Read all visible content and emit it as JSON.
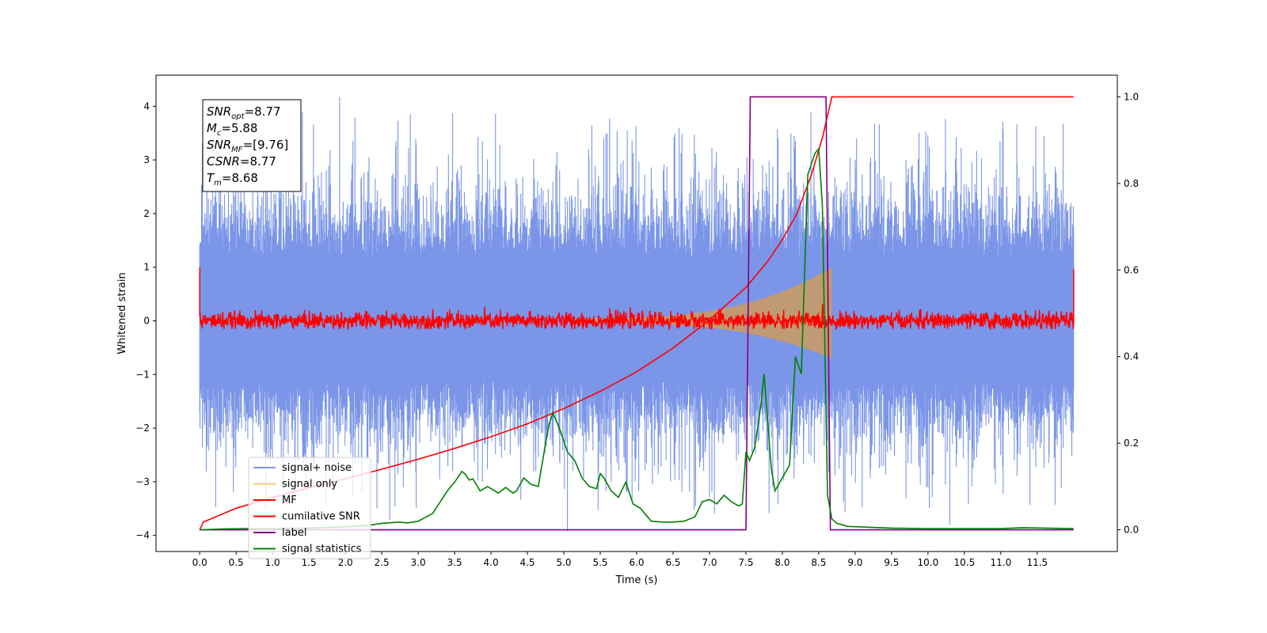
{
  "chart_data": {
    "type": "line",
    "xlabel": "Time (s)",
    "ylabel": "Whitened strain",
    "xlim": [
      -0.6,
      12.6
    ],
    "ylim": [
      -4.3,
      4.58
    ],
    "y2lim": [
      -0.05,
      1.05
    ],
    "xticks": [
      "0.0",
      "0.5",
      "1.0",
      "1.5",
      "2.0",
      "2.5",
      "3.0",
      "3.5",
      "4.0",
      "4.5",
      "5.0",
      "5.5",
      "6.0",
      "6.5",
      "7.0",
      "7.5",
      "8.0",
      "8.5",
      "9.0",
      "9.5",
      "10.0",
      "10.5",
      "11.0",
      "11.5"
    ],
    "yticks": [
      "−4",
      "−3",
      "−2",
      "−1",
      "0",
      "1",
      "2",
      "3",
      "4"
    ],
    "y2ticks": [
      "0.0",
      "0.2",
      "0.4",
      "0.6",
      "0.8",
      "1.0"
    ],
    "grid": false,
    "legend_position": "lower-left",
    "annotation": {
      "lines": [
        {
          "sym": "SNR",
          "sub": "opt",
          "value": "=8.77"
        },
        {
          "sym": "M",
          "sub": "c",
          "value": "=5.88"
        },
        {
          "sym": "SNR",
          "sub": "MF",
          "value": "=[9.76]"
        },
        {
          "sym": "CSNR",
          "sub": "",
          "value": "=8.77"
        },
        {
          "sym": "T",
          "sub": "m",
          "value": "=8.68"
        }
      ]
    },
    "noise_envelope": {
      "t_start": 0.0,
      "t_end": 12.0,
      "typical_max": 2.6,
      "typical_min": -2.4,
      "peak_max": 4.17,
      "peak_min": -3.92
    },
    "chirp": {
      "t_start": 5.2,
      "t_end": 8.68,
      "amplitude_end": 0.95
    },
    "series": [
      {
        "name": "signal+ noise",
        "color": "#7b96e8",
        "axis": "left"
      },
      {
        "name": "signal only",
        "color": "#f5c87a",
        "axis": "left"
      },
      {
        "name": "MF",
        "color": "#ff0000",
        "axis": "left"
      },
      {
        "name": "cumilative SNR",
        "color": "#ff0000",
        "axis": "right",
        "x": [
          0.0,
          0.05,
          0.5,
          1.0,
          1.5,
          2.0,
          2.5,
          3.0,
          3.5,
          4.0,
          4.5,
          5.0,
          5.5,
          6.0,
          6.5,
          7.0,
          7.5,
          7.8,
          8.0,
          8.2,
          8.4,
          8.55,
          8.68,
          12.0
        ],
        "y": [
          0.0,
          0.018,
          0.05,
          0.075,
          0.097,
          0.118,
          0.14,
          0.163,
          0.188,
          0.215,
          0.245,
          0.28,
          0.32,
          0.365,
          0.42,
          0.485,
          0.56,
          0.62,
          0.67,
          0.73,
          0.82,
          0.905,
          1.0,
          1.0
        ]
      },
      {
        "name": "label",
        "color": "#800080",
        "axis": "right",
        "x": [
          0.0,
          7.5,
          7.56,
          8.6,
          8.66,
          12.0
        ],
        "y": [
          0.0,
          0.0,
          1.0,
          1.0,
          0.0,
          0.0
        ]
      },
      {
        "name": "signal statistics",
        "color": "#008000",
        "axis": "right",
        "x": [
          0.0,
          0.3,
          0.6,
          1.0,
          1.5,
          2.0,
          2.3,
          2.5,
          2.75,
          2.85,
          3.0,
          3.2,
          3.4,
          3.5,
          3.6,
          3.65,
          3.7,
          3.75,
          3.85,
          3.95,
          4.0,
          4.1,
          4.2,
          4.3,
          4.35,
          4.45,
          4.55,
          4.65,
          4.7,
          4.75,
          4.8,
          4.85,
          4.95,
          5.05,
          5.15,
          5.25,
          5.35,
          5.45,
          5.5,
          5.55,
          5.65,
          5.75,
          5.85,
          5.95,
          6.05,
          6.2,
          6.35,
          6.5,
          6.65,
          6.8,
          6.9,
          7.0,
          7.1,
          7.2,
          7.3,
          7.4,
          7.45,
          7.5,
          7.55,
          7.62,
          7.7,
          7.75,
          7.85,
          7.9,
          8.0,
          8.1,
          8.18,
          8.26,
          8.35,
          8.45,
          8.5,
          8.55,
          8.62,
          8.68,
          8.75,
          8.9,
          9.5,
          10.0,
          10.5,
          11.0,
          11.3,
          12.0
        ],
        "y": [
          0.0,
          0.002,
          0.003,
          0.003,
          0.004,
          0.007,
          0.01,
          0.015,
          0.018,
          0.016,
          0.02,
          0.038,
          0.09,
          0.11,
          0.135,
          0.128,
          0.115,
          0.118,
          0.09,
          0.1,
          0.095,
          0.085,
          0.098,
          0.085,
          0.09,
          0.12,
          0.105,
          0.1,
          0.15,
          0.2,
          0.245,
          0.27,
          0.23,
          0.18,
          0.16,
          0.12,
          0.1,
          0.095,
          0.13,
          0.12,
          0.09,
          0.075,
          0.11,
          0.06,
          0.05,
          0.02,
          0.018,
          0.018,
          0.02,
          0.03,
          0.065,
          0.07,
          0.06,
          0.08,
          0.065,
          0.055,
          0.06,
          0.18,
          0.16,
          0.19,
          0.28,
          0.36,
          0.14,
          0.09,
          0.12,
          0.15,
          0.4,
          0.36,
          0.82,
          0.87,
          0.88,
          0.75,
          0.08,
          0.025,
          0.015,
          0.008,
          0.004,
          0.003,
          0.003,
          0.003,
          0.005,
          0.003
        ]
      }
    ]
  }
}
